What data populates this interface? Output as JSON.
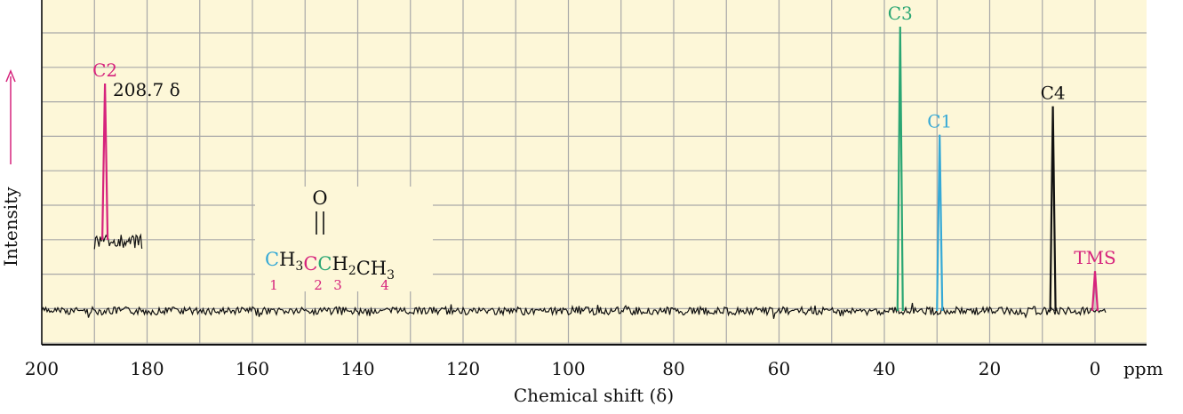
{
  "chart_data": {
    "type": "line",
    "title": "",
    "xlabel": "Chemical shift (δ)",
    "ylabel": "Intensity",
    "x_unit": "ppm",
    "xlim": [
      200,
      0
    ],
    "x_reversed": true,
    "x_ticks": [
      "200",
      "180",
      "160",
      "140",
      "120",
      "100",
      "80",
      "60",
      "40",
      "20",
      "0"
    ],
    "x_tick_values": [
      200,
      180,
      160,
      140,
      120,
      100,
      80,
      60,
      40,
      20,
      0
    ],
    "ylim": [
      0,
      10
    ],
    "grid": true,
    "peaks": [
      {
        "label": "C2",
        "x": 188.0,
        "y": 8.0,
        "color": "#d6237c"
      },
      {
        "label": "C3",
        "x": 37.0,
        "y": 10.0,
        "color": "#2aa673"
      },
      {
        "label": "C1",
        "x": 29.5,
        "y": 6.2,
        "color": "#36a9d6"
      },
      {
        "label": "C4",
        "x": 8.0,
        "y": 7.2,
        "color": "#111111"
      },
      {
        "label": "TMS",
        "x": 0.0,
        "y": 1.4,
        "color": "#d6237c"
      }
    ],
    "inset_note": "208.7 δ",
    "offset_trace_range": [
      190,
      181
    ]
  },
  "structure": {
    "o_label": "O",
    "double_bond": "||",
    "parts": [
      {
        "text": "C",
        "color": "#36a9d6"
      },
      {
        "text": "H",
        "color": "#111111"
      },
      {
        "text": "3",
        "color": "#111111",
        "sub": true
      },
      {
        "text": "C",
        "color": "#d6237c"
      },
      {
        "text": "C",
        "color": "#2aa673"
      },
      {
        "text": "H",
        "color": "#111111"
      },
      {
        "text": "2",
        "color": "#111111",
        "sub": true
      },
      {
        "text": "CH",
        "color": "#111111"
      },
      {
        "text": "3",
        "color": "#111111",
        "sub": true
      }
    ],
    "numbers": [
      "1",
      "2",
      "3",
      "4"
    ],
    "number_color": "#d6237c"
  },
  "colors": {
    "background": "#fdf7d8",
    "grid": "#a8a8a8",
    "axis": "#111111",
    "intensity_arrow": "#d6237c"
  }
}
